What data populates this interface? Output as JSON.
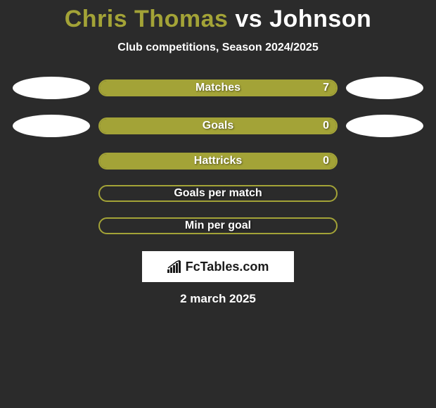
{
  "title": {
    "player1": "Chris Thomas",
    "vs": "vs",
    "player2": "Johnson",
    "p1_color": "#a3a337",
    "p2_color": "#ffffff",
    "fontsize": 34
  },
  "subtitle": "Club competitions, Season 2024/2025",
  "background_color": "#2b2b2b",
  "bar_color": "#a3a337",
  "bar_border_color": "#a3a337",
  "text_color": "#ffffff",
  "ellipse_color": "#ffffff",
  "stats": [
    {
      "label": "Matches",
      "value": "7",
      "fill_pct": 100,
      "show_left_ellipse": true,
      "show_right_ellipse": true,
      "show_value": true
    },
    {
      "label": "Goals",
      "value": "0",
      "fill_pct": 100,
      "show_left_ellipse": true,
      "show_right_ellipse": true,
      "show_value": true
    },
    {
      "label": "Hattricks",
      "value": "0",
      "fill_pct": 100,
      "show_left_ellipse": false,
      "show_right_ellipse": false,
      "show_value": true
    },
    {
      "label": "Goals per match",
      "value": "",
      "fill_pct": 0,
      "show_left_ellipse": false,
      "show_right_ellipse": false,
      "show_value": false
    },
    {
      "label": "Min per goal",
      "value": "",
      "fill_pct": 0,
      "show_left_ellipse": false,
      "show_right_ellipse": false,
      "show_value": false
    }
  ],
  "logo": {
    "text": "FcTables.com",
    "bg_color": "#ffffff",
    "text_color": "#1a1a1a"
  },
  "date": "2 march 2025"
}
